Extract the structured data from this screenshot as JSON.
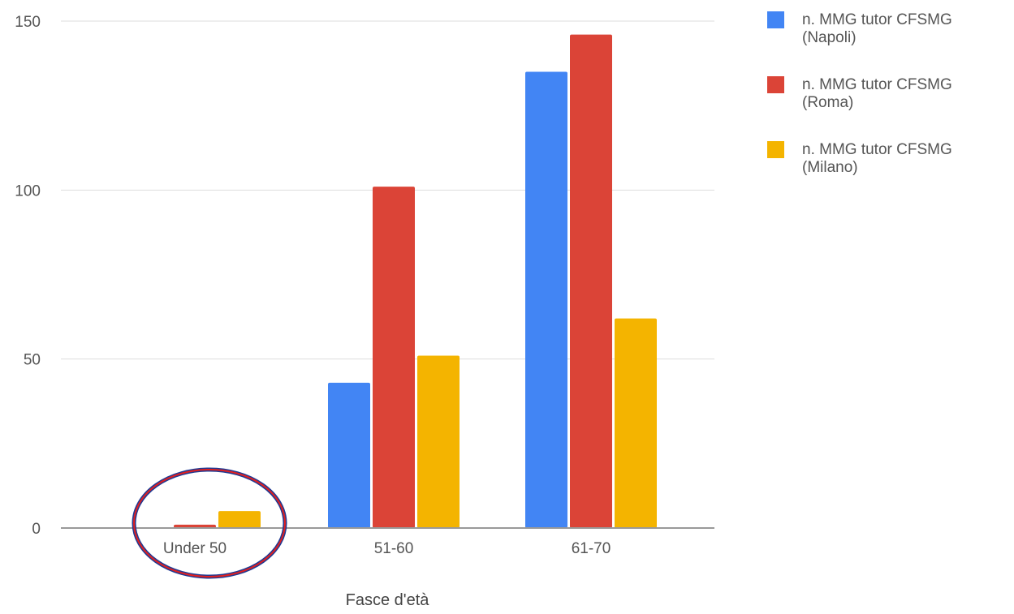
{
  "chart_data": {
    "type": "bar",
    "title": "",
    "xlabel": "Fasce d'età",
    "ylabel": "",
    "categories": [
      "Under 50",
      "51-60",
      "61-70"
    ],
    "series": [
      {
        "name_line1": "n. MMG tutor CFSMG",
        "name_line2": "(Napoli)",
        "color": "#4285f4",
        "values": [
          0,
          43,
          135
        ]
      },
      {
        "name_line1": "n. MMG tutor CFSMG",
        "name_line2": "(Roma)",
        "color": "#db4437",
        "values": [
          1,
          101,
          146
        ]
      },
      {
        "name_line1": "n. MMG tutor CFSMG",
        "name_line2": "(Milano)",
        "color": "#f4b400",
        "values": [
          5,
          51,
          62
        ]
      }
    ],
    "ylim": [
      0,
      150
    ],
    "yticks": [
      0,
      50,
      100,
      150
    ],
    "grid": true,
    "legend_position": "right",
    "annotation": {
      "type": "ellipse",
      "target_category": "Under 50",
      "stroke_outer": "#1f3a93",
      "stroke_inner": "#e02020"
    }
  }
}
